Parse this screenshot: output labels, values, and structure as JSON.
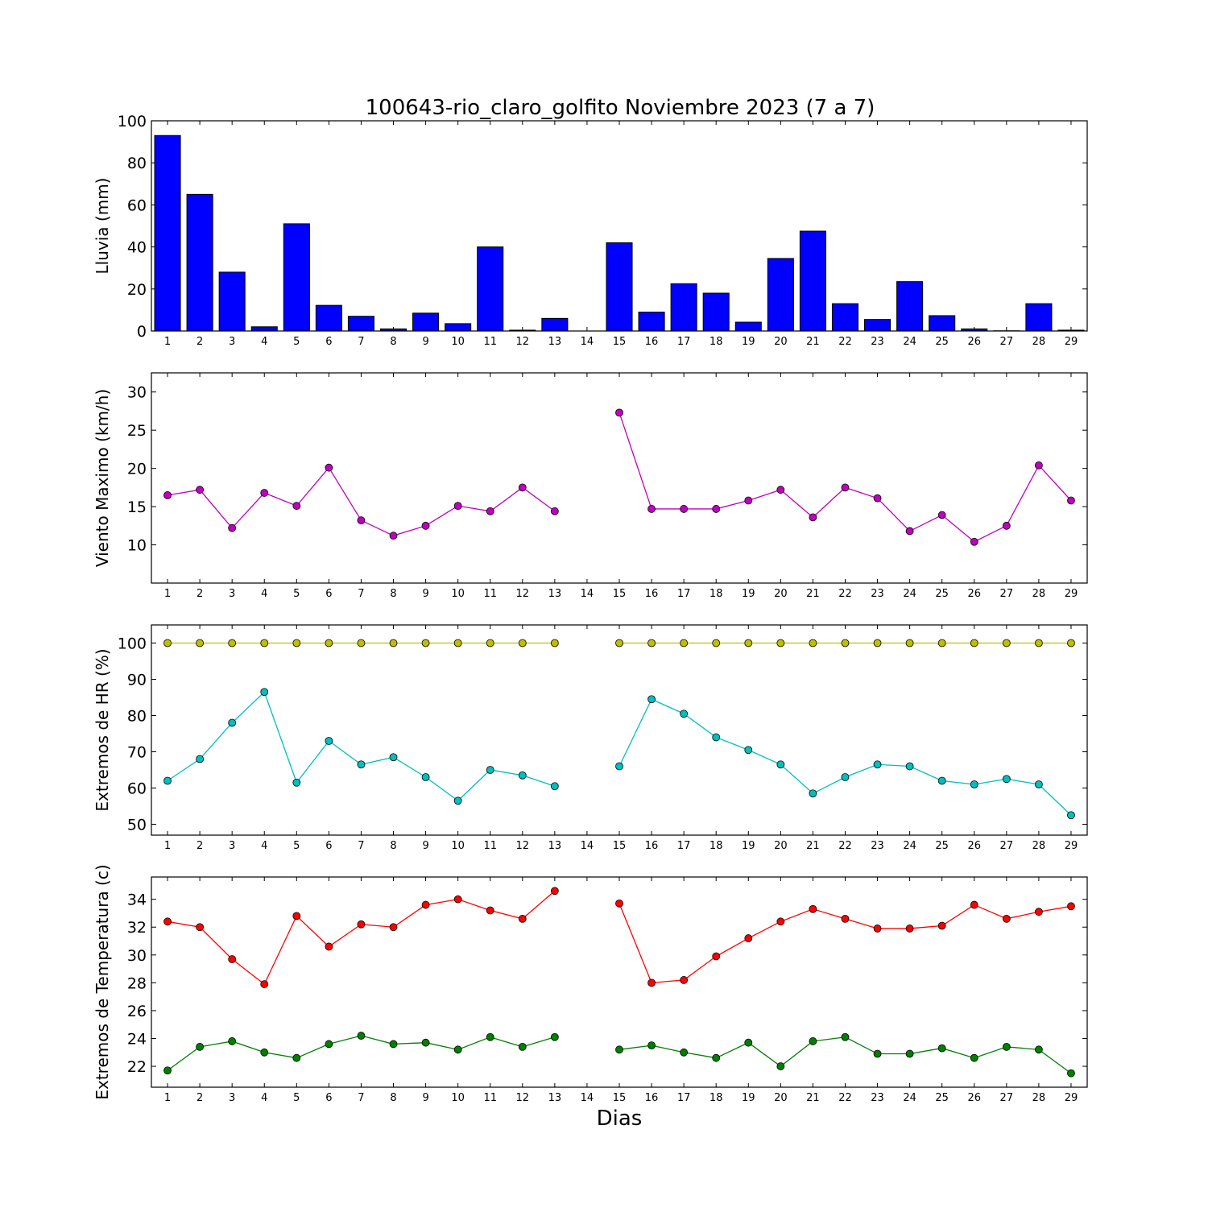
{
  "chart_data": [
    {
      "type": "bar",
      "title": "100643-rio_claro_golfito Noviembre 2023  (7 a 7)",
      "ylabel": "Lluvia (mm)",
      "xlabel": "",
      "ylim": [
        0,
        100
      ],
      "yticks": [
        0,
        20,
        40,
        60,
        80,
        100
      ],
      "categories": [
        "1",
        "2",
        "3",
        "4",
        "5",
        "6",
        "7",
        "8",
        "9",
        "10",
        "11",
        "12",
        "13",
        "14",
        "15",
        "16",
        "17",
        "18",
        "19",
        "20",
        "21",
        "22",
        "23",
        "24",
        "25",
        "26",
        "27",
        "28",
        "29"
      ],
      "values": [
        93,
        65,
        28,
        2,
        51,
        12.2,
        7,
        1,
        8.5,
        3.5,
        40,
        0.4,
        6,
        0,
        42,
        9,
        22.5,
        18,
        4.2,
        34.5,
        47.5,
        13,
        5.5,
        23.5,
        7.3,
        1,
        0.1,
        13,
        0.4
      ],
      "colors": {
        "bar": "#0000ff",
        "edge": "#000000"
      }
    },
    {
      "type": "line",
      "ylabel": "Viento Maximo (km/h)",
      "xlabel": "",
      "ylim": [
        5,
        32.5
      ],
      "yticks": [
        10,
        15,
        20,
        25,
        30
      ],
      "x": [
        1,
        2,
        3,
        4,
        5,
        6,
        7,
        8,
        9,
        10,
        11,
        12,
        13,
        14,
        15,
        16,
        17,
        18,
        19,
        20,
        21,
        22,
        23,
        24,
        25,
        26,
        27,
        28,
        29
      ],
      "series": [
        {
          "values": [
            16.5,
            17.2,
            12.2,
            16.8,
            15.1,
            20.1,
            13.2,
            11.2,
            12.5,
            15.1,
            14.4,
            17.5,
            14.4,
            null,
            27.3,
            14.7,
            14.7,
            14.7,
            15.8,
            17.2,
            13.6,
            17.5,
            16.1,
            11.8,
            13.9,
            10.4,
            12.5,
            20.4,
            15.8
          ],
          "color": "#bf00bf"
        }
      ]
    },
    {
      "type": "line",
      "ylabel": "Extremos de HR (%)",
      "xlabel": "",
      "ylim": [
        47,
        105
      ],
      "yticks": [
        50,
        60,
        70,
        80,
        90,
        100
      ],
      "x": [
        1,
        2,
        3,
        4,
        5,
        6,
        7,
        8,
        9,
        10,
        11,
        12,
        13,
        14,
        15,
        16,
        17,
        18,
        19,
        20,
        21,
        22,
        23,
        24,
        25,
        26,
        27,
        28,
        29
      ],
      "series": [
        {
          "values": [
            100,
            100,
            100,
            100,
            100,
            100,
            100,
            100,
            100,
            100,
            100,
            100,
            100,
            null,
            100,
            100,
            100,
            100,
            100,
            100,
            100,
            100,
            100,
            100,
            100,
            100,
            100,
            100,
            100
          ],
          "color": "#bfbf00"
        },
        {
          "values": [
            62,
            68,
            78,
            86.5,
            61.5,
            73,
            66.5,
            68.5,
            63,
            56.5,
            65,
            63.5,
            60.5,
            null,
            66,
            84.5,
            80.5,
            74,
            70.5,
            66.5,
            58.5,
            63,
            66.5,
            66,
            62,
            61,
            62.5,
            61,
            52.5
          ],
          "color": "#00bfbf"
        }
      ]
    },
    {
      "type": "line",
      "ylabel": "Extremos de Temperatura (c)",
      "xlabel": "Dias",
      "ylim": [
        20.5,
        35.6
      ],
      "yticks": [
        22,
        24,
        26,
        28,
        30,
        32,
        34
      ],
      "x": [
        1,
        2,
        3,
        4,
        5,
        6,
        7,
        8,
        9,
        10,
        11,
        12,
        13,
        14,
        15,
        16,
        17,
        18,
        19,
        20,
        21,
        22,
        23,
        24,
        25,
        26,
        27,
        28,
        29
      ],
      "series": [
        {
          "values": [
            32.4,
            32,
            29.7,
            27.9,
            32.8,
            30.6,
            32.2,
            32,
            33.6,
            34,
            33.2,
            32.6,
            34.6,
            null,
            33.7,
            28,
            28.2,
            29.9,
            31.2,
            32.4,
            33.3,
            32.6,
            31.9,
            31.9,
            32.1,
            33.6,
            32.6,
            33.1,
            33.5
          ],
          "color": "#ff0000"
        },
        {
          "values": [
            21.7,
            23.4,
            23.8,
            23,
            22.6,
            23.6,
            24.2,
            23.6,
            23.7,
            23.2,
            24.1,
            23.4,
            24.1,
            null,
            23.2,
            23.5,
            23,
            22.6,
            23.7,
            22,
            23.8,
            24.1,
            22.9,
            22.9,
            23.3,
            22.6,
            23.4,
            23.2,
            21.5
          ],
          "color": "#007f00"
        }
      ]
    }
  ]
}
